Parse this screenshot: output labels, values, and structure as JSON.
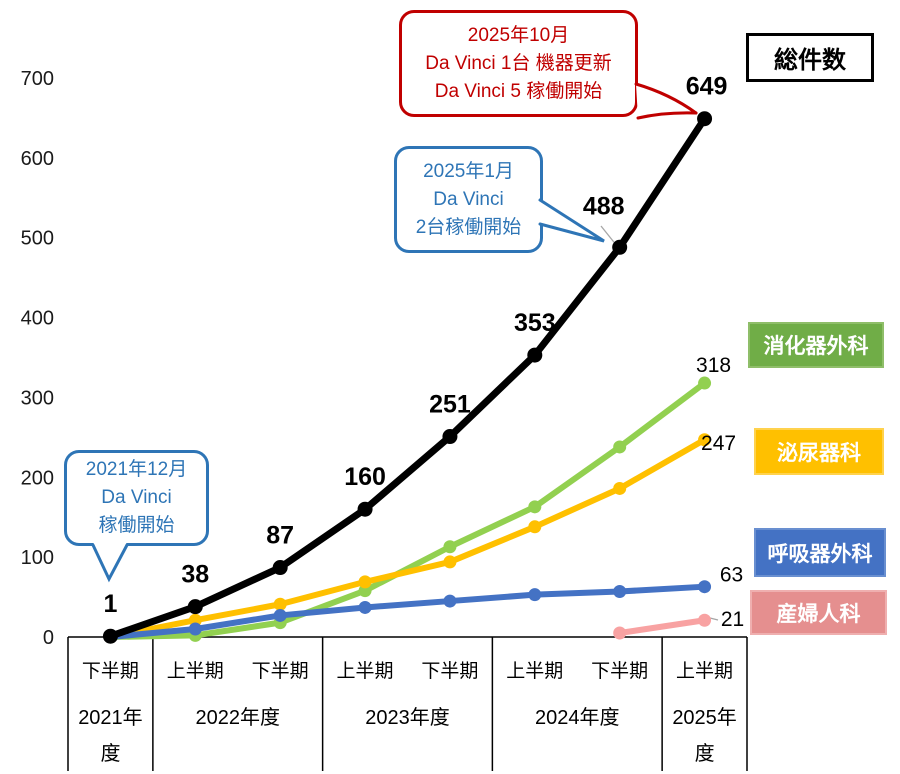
{
  "chart_data": {
    "type": "line",
    "y_axis": {
      "min": 0,
      "max": 700,
      "step": 100,
      "ticks": [
        0,
        100,
        200,
        300,
        400,
        500,
        600,
        700
      ]
    },
    "x_axis": {
      "half_period_labels": [
        "下半期",
        "上半期",
        "下半期",
        "上半期",
        "下半期",
        "上半期",
        "下半期",
        "上半期"
      ],
      "year_groups": [
        {
          "label": "2021年度",
          "span": 1
        },
        {
          "label": "2022年度",
          "span": 2
        },
        {
          "label": "2023年度",
          "span": 2
        },
        {
          "label": "2024年度",
          "span": 2
        },
        {
          "label": "2025年度",
          "span": 1
        }
      ]
    },
    "series": [
      {
        "key": "total",
        "name": "総件数",
        "color": "#000000",
        "values": [
          1,
          38,
          87,
          160,
          251,
          353,
          488,
          649
        ],
        "label_all_points": true
      },
      {
        "key": "digestive-surgery",
        "name": "消化器外科",
        "color": "#92D050",
        "values": [
          0,
          2,
          18,
          58,
          113,
          163,
          238,
          318
        ],
        "end_label": "318"
      },
      {
        "key": "urology",
        "name": "泌尿器科",
        "color": "#FFC000",
        "values": [
          0,
          21,
          41,
          69,
          94,
          138,
          186,
          247
        ],
        "end_label": "247"
      },
      {
        "key": "respiratory-surgery",
        "name": "呼吸器外科",
        "color": "#4472C4",
        "values": [
          0,
          10,
          27,
          37,
          45,
          53,
          57,
          63
        ],
        "end_label": "63"
      },
      {
        "key": "obstetrics-gynecology",
        "name": "産婦人科",
        "color": "#F8A2A2",
        "values": [
          null,
          null,
          null,
          null,
          null,
          null,
          5,
          21
        ],
        "end_label": "21"
      }
    ],
    "legend_position": "right",
    "grid": false
  },
  "legend": {
    "total_box": {
      "label": "総件数",
      "border_color": "#000000"
    },
    "items": [
      {
        "label": "消化器外科",
        "color": "#70AD47",
        "border": "#8FBE69"
      },
      {
        "label": "泌尿器科",
        "color": "#FFC000",
        "border": "#FFD24D"
      },
      {
        "label": "呼吸器外科",
        "color": "#4472C4",
        "border": "#698FD0"
      },
      {
        "label": "産婦人科",
        "color": "#E58F8F",
        "border": "#EFAFAF"
      }
    ]
  },
  "annotations": [
    {
      "id": "upgrade",
      "color": "#C00000",
      "lines": [
        "2025年10月",
        "Da Vinci 1台 機器更新",
        "Da Vinci 5 稼働開始"
      ]
    },
    {
      "id": "expand",
      "color": "#2E75B6",
      "lines": [
        "2025年1月",
        "Da Vinci",
        "2台稼働開始"
      ]
    },
    {
      "id": "start",
      "color": "#2E75B6",
      "lines": [
        "2021年12月",
        "Da Vinci",
        "稼働開始"
      ]
    }
  ]
}
